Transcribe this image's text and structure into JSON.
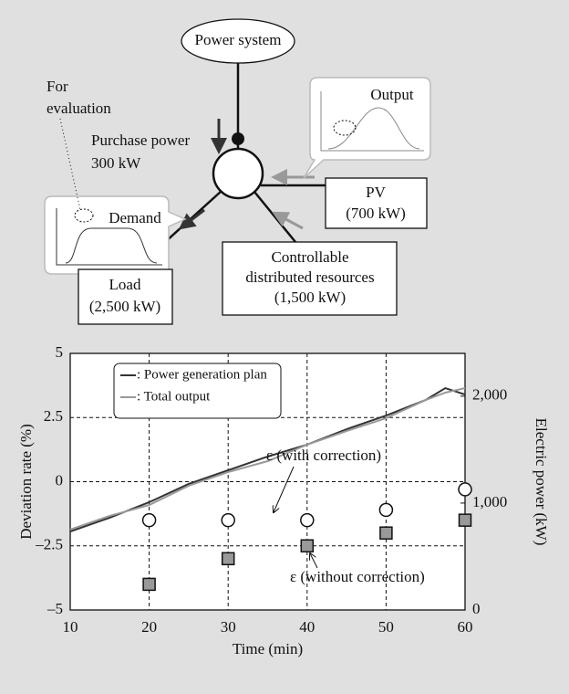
{
  "diagram": {
    "power_system": "Power system",
    "for_evaluation": [
      "For",
      "evaluation"
    ],
    "purchase": [
      "Purchase power",
      "300 kW"
    ],
    "demand": "Demand",
    "output": "Output",
    "pv": [
      "PV",
      "(700 kW)"
    ],
    "load": [
      "Load",
      "(2,500 kW)"
    ],
    "controllable": [
      "Controllable",
      "distributed resources",
      "(1,500 kW)"
    ]
  },
  "chart_data": {
    "type": "line",
    "xlabel": "Time (min)",
    "ylabel": "Deviation rate (%)",
    "y2label": "Electric power (kW)",
    "xlim": [
      10,
      60
    ],
    "xticks": [
      10,
      20,
      30,
      40,
      50,
      60
    ],
    "ylim": [
      -5,
      5
    ],
    "yticks": [
      5,
      2.5,
      0,
      {
        "value": -2.5,
        "label": "–2.5"
      },
      {
        "value": -5,
        "label": "–5"
      }
    ],
    "y2lim": [
      0,
      2400
    ],
    "y2ticks": [
      0,
      {
        "value": 1000,
        "label": "1,000"
      },
      {
        "value": 2000,
        "label": "2,000"
      }
    ],
    "grid": true,
    "legend": "upper left",
    "series": [
      {
        "name": ": Power generation plan",
        "color": "#333333",
        "axis": "y2",
        "x": [
          10,
          15,
          20,
          25,
          30,
          35,
          40,
          45,
          50,
          55,
          57.5,
          60
        ],
        "values": [
          734,
          863,
          1008,
          1179,
          1307,
          1435,
          1546,
          1691,
          1819,
          1964,
          2075,
          2016
        ]
      },
      {
        "name": ": Total output",
        "color": "#999999",
        "axis": "y2",
        "x": [
          10,
          15,
          20,
          25,
          30,
          35,
          40,
          45,
          50,
          55,
          57.5,
          60
        ],
        "values": [
          752,
          880,
          982,
          1162,
          1290,
          1392,
          1546,
          1674,
          1794,
          1964,
          2033,
          2075
        ]
      },
      {
        "marker": "circle",
        "color": "#ffffff",
        "x": [
          20,
          30,
          40,
          50,
          60
        ],
        "values": [
          -1.5,
          -1.5,
          -1.5,
          -1.1,
          -0.3
        ]
      },
      {
        "marker": "square",
        "color": "#999999",
        "x": [
          20,
          30,
          40,
          50,
          60
        ],
        "values": [
          -4.0,
          -3.0,
          -2.5,
          -2.0,
          -1.5
        ]
      }
    ],
    "annotations": [
      "ε (with correction)",
      "ε (without correction)"
    ]
  }
}
